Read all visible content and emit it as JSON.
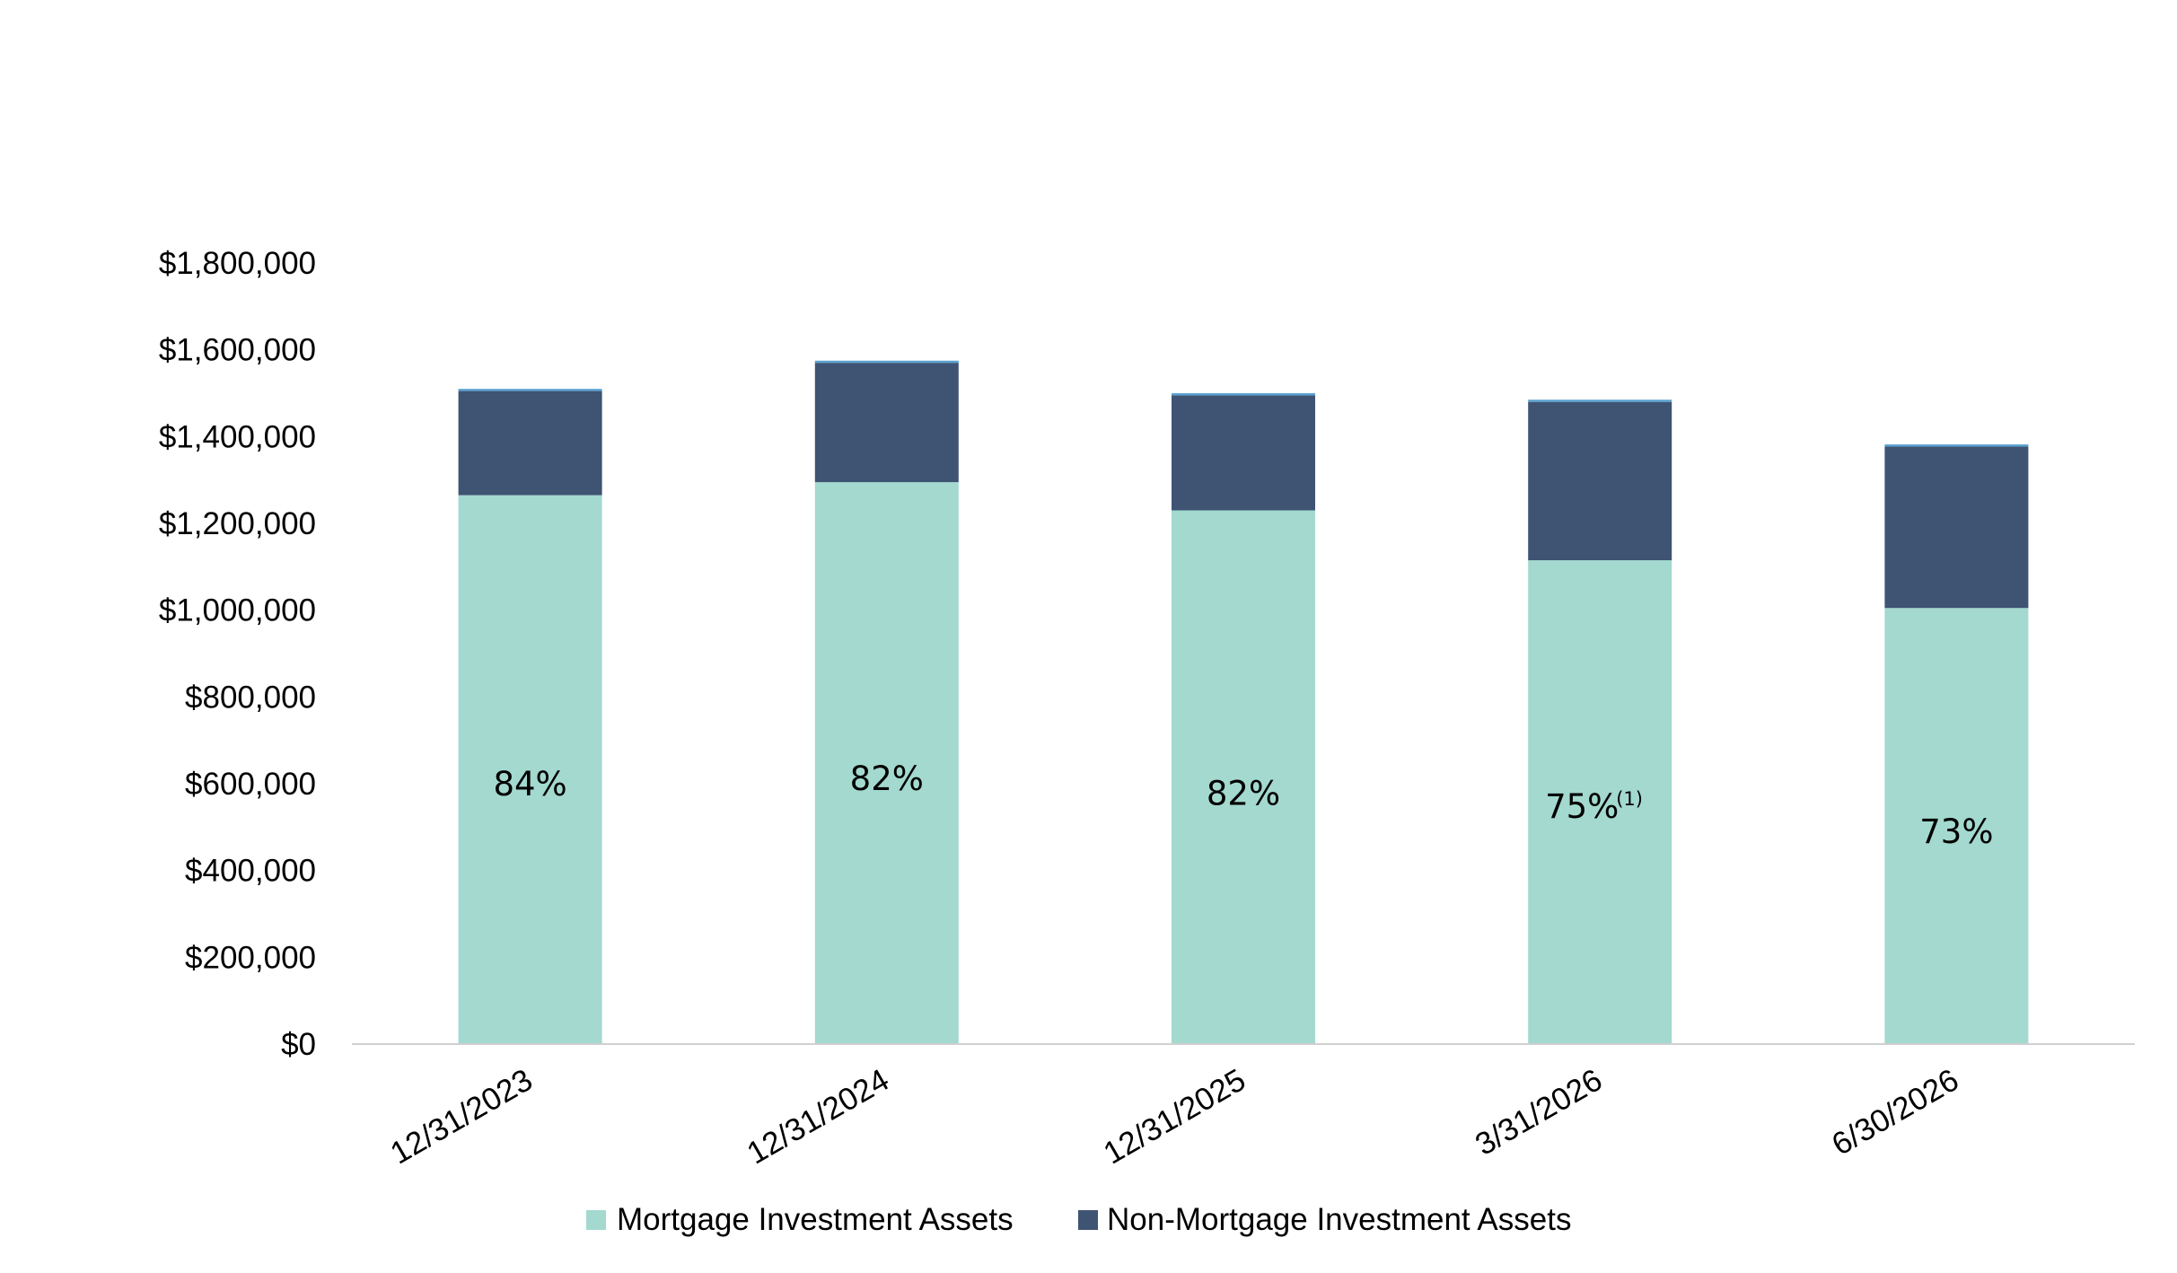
{
  "colors": {
    "mortgage": "#a3d9cf",
    "non_mortgage": "#3f5373",
    "top_sliver": "#5aa2d1",
    "axis": "#d0d0d0"
  },
  "chart_data": {
    "type": "bar",
    "stacked": true,
    "title": "",
    "xlabel": "",
    "ylabel": "",
    "categories": [
      "12/31/2023",
      "12/31/2024",
      "12/31/2025",
      "3/31/2026",
      "6/30/2026"
    ],
    "series": [
      {
        "name": "Mortgage Investment Assets",
        "values": [
          1265000,
          1295000,
          1230000,
          1115000,
          1005000
        ]
      },
      {
        "name": "Non-Mortgage Investment Assets",
        "values": [
          240000,
          275000,
          265000,
          365000,
          372000
        ]
      },
      {
        "values": [
          5000,
          5000,
          5000,
          5000,
          5000
        ]
      }
    ],
    "data_labels": [
      "84%",
      "82%",
      "82%",
      "75%",
      "73%"
    ],
    "data_label_footnotes": [
      "",
      "",
      "",
      "(1)",
      ""
    ],
    "data_label_values": [
      600000,
      612000,
      578000,
      548000,
      490000
    ],
    "yticks": [
      "$0",
      "$200,000",
      "$400,000",
      "$600,000",
      "$800,000",
      "$1,000,000",
      "$1,200,000",
      "$1,400,000",
      "$1,600,000",
      "$1,800,000"
    ],
    "ylim": [
      0,
      1800000
    ],
    "grid": false,
    "legend_position": "bottom"
  }
}
